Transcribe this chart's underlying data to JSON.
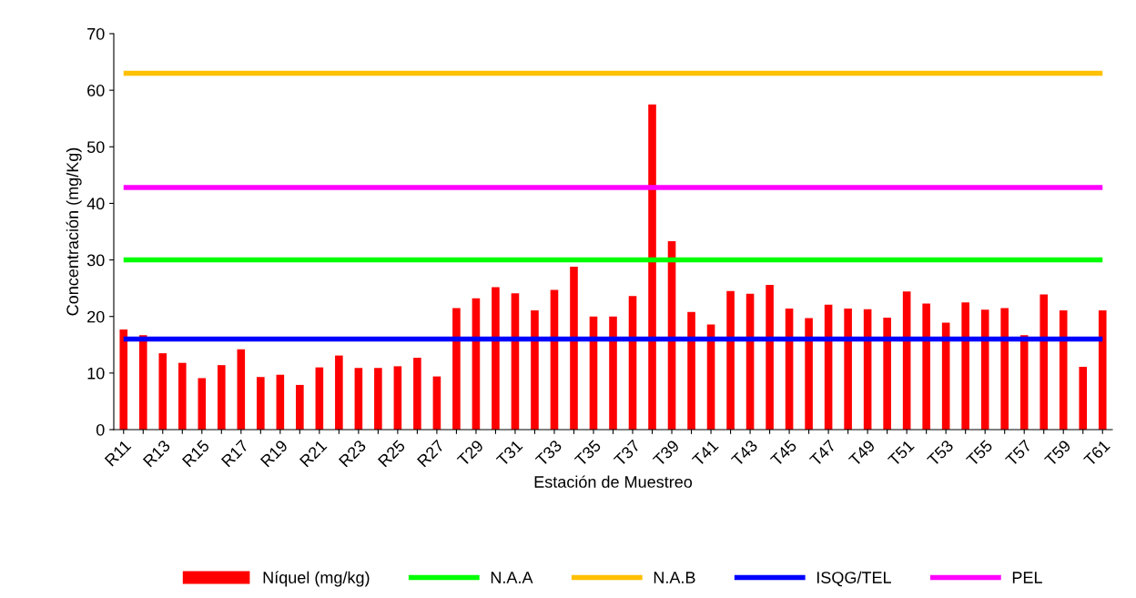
{
  "chart_data": {
    "type": "bar",
    "xlabel": "Estación de Muestreo",
    "ylabel": "Concentración (mg/Kg)",
    "categories": [
      "R11",
      null,
      "R13",
      null,
      "R15",
      null,
      "R17",
      null,
      "R19",
      null,
      "R21",
      null,
      "R23",
      null,
      "R25",
      null,
      "R27",
      null,
      "T29",
      null,
      "T31",
      null,
      "T33",
      null,
      "T35",
      null,
      "T37",
      null,
      "T39",
      null,
      "T41",
      null,
      "T43",
      null,
      "T45",
      null,
      "T47",
      null,
      "T49",
      null,
      "T51",
      null,
      "T53",
      null,
      "T55",
      null,
      "T57",
      null,
      "T59",
      null,
      "T61"
    ],
    "series": [
      {
        "name": "Níquel (mg/kg)",
        "color": "#ff0000",
        "values": [
          17.7,
          16.7,
          13.5,
          11.8,
          9.1,
          11.4,
          14.2,
          9.3,
          9.7,
          7.9,
          11.0,
          13.1,
          10.9,
          10.9,
          11.2,
          12.7,
          9.4,
          21.5,
          23.2,
          25.2,
          24.1,
          21.1,
          24.7,
          28.8,
          20.0,
          20.0,
          23.6,
          57.5,
          33.3,
          20.8,
          18.6,
          24.5,
          24.0,
          25.6,
          21.4,
          19.7,
          22.1,
          21.4,
          21.3,
          19.8,
          24.4,
          22.3,
          18.9,
          22.5,
          21.2,
          21.5,
          16.7,
          23.9,
          21.1,
          11.1,
          21.1
        ]
      }
    ],
    "ref_lines": [
      {
        "axis": "y",
        "value": 30,
        "label": "N.A.A",
        "color": "#00ff00"
      },
      {
        "axis": "y",
        "value": 63,
        "label": "N.A.B",
        "color": "#ffc000"
      },
      {
        "axis": "y",
        "value": 16,
        "label": "ISQG/TEL",
        "color": "#0000ff"
      },
      {
        "axis": "y",
        "value": 42.8,
        "label": "PEL",
        "color": "#ff00ff"
      }
    ],
    "ylim": [
      0,
      70
    ],
    "yticks": [
      0,
      10,
      20,
      30,
      40,
      50,
      60,
      70
    ],
    "grid": false,
    "legend": "bottom"
  }
}
